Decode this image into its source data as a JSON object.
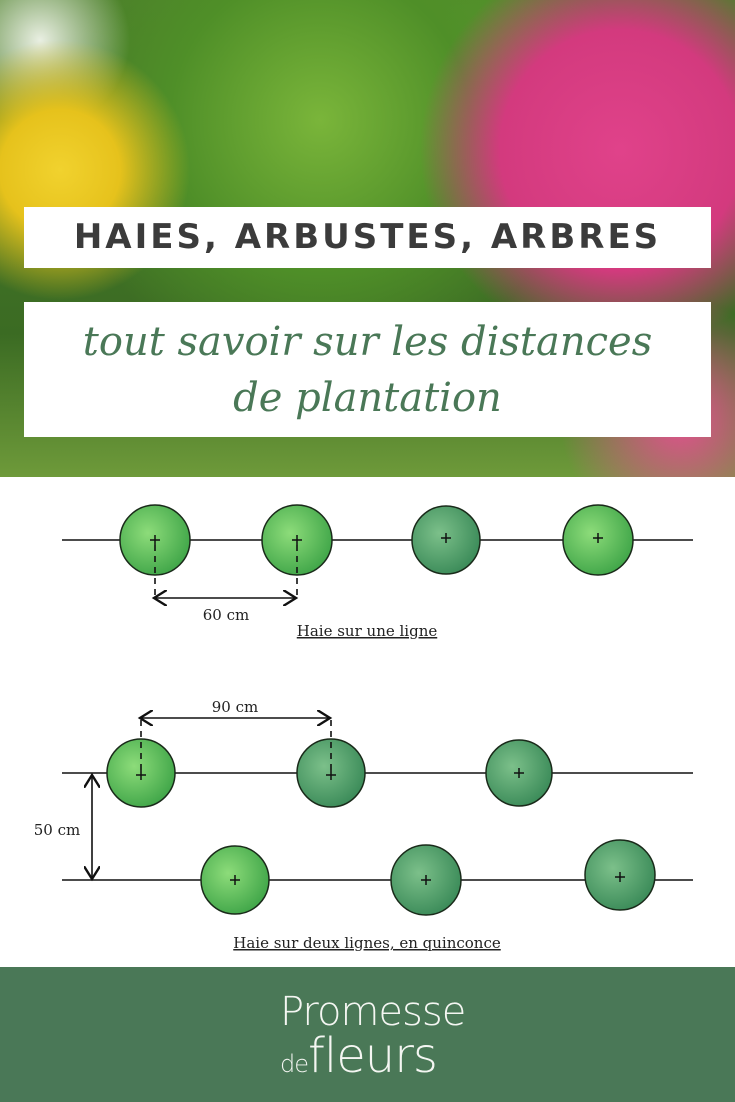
{
  "header": {
    "title": "HAIES, ARBUSTES, ARBRES",
    "subtitle_line1": "tout savoir sur les distances",
    "subtitle_line2": "de plantation"
  },
  "diagram": {
    "single_row": {
      "spacing_label": "60 cm",
      "caption": "Haie sur une ligne"
    },
    "double_row": {
      "spacing_label": "90 cm",
      "row_gap_label": "50 cm",
      "caption": "Haie sur deux lignes, en quinconce"
    }
  },
  "footer": {
    "logo_line1": "Promesse",
    "logo_de": "de",
    "logo_fleurs": "fleurs",
    "background_color": "#4a7857"
  }
}
